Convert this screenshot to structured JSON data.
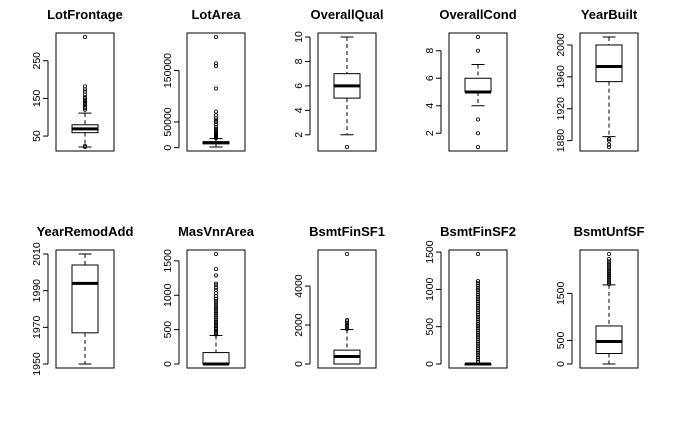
{
  "chart_data": [
    {
      "type": "boxplot",
      "title": "LotFrontage",
      "ylim": [
        21,
        313
      ],
      "ticks": [
        50,
        150,
        250
      ],
      "whisker_low": 21,
      "q1": 59,
      "median": 69,
      "q3": 80,
      "whisker_high": 111,
      "outliers": [
        120,
        124,
        128,
        134,
        138,
        141,
        144,
        150,
        153,
        160,
        168,
        174,
        182,
        313,
        21,
        24
      ]
    },
    {
      "type": "boxplot",
      "title": "LotArea",
      "ylim": [
        1300,
        215245
      ],
      "ticks": [
        0,
        50000,
        150000
      ],
      "whisker_low": 1300,
      "q1": 7554,
      "median": 9478,
      "q3": 11602,
      "whisker_high": 17671,
      "outliers": [
        18500,
        19000,
        20000,
        21000,
        22000,
        23000,
        25000,
        26000,
        28000,
        30000,
        32000,
        34000,
        36000,
        40000,
        45000,
        50000,
        53000,
        57000,
        63000,
        70000,
        115000,
        159000,
        164000,
        215245
      ]
    },
    {
      "type": "boxplot",
      "title": "OverallQual",
      "ylim": [
        1,
        10
      ],
      "ticks": [
        2,
        4,
        6,
        8,
        10
      ],
      "whisker_low": 2,
      "q1": 5,
      "median": 6,
      "q3": 7,
      "whisker_high": 10,
      "outliers": [
        1
      ]
    },
    {
      "type": "boxplot",
      "title": "OverallCond",
      "ylim": [
        1,
        9
      ],
      "ticks": [
        2,
        4,
        6,
        8
      ],
      "whisker_low": 4,
      "q1": 5,
      "median": 5,
      "q3": 6,
      "whisker_high": 7,
      "outliers": [
        1,
        2,
        3,
        8,
        9
      ]
    },
    {
      "type": "boxplot",
      "title": "YearBuilt",
      "ylim": [
        1872,
        2010
      ],
      "ticks": [
        1880,
        1920,
        1960,
        2000
      ],
      "whisker_low": 1885,
      "q1": 1954,
      "median": 1973,
      "q3": 2000,
      "whisker_high": 2010,
      "outliers": [
        1872,
        1875,
        1880,
        1882
      ]
    },
    {
      "type": "boxplot",
      "title": "YearRemodAdd",
      "ylim": [
        1950,
        2010
      ],
      "ticks": [
        1950,
        1970,
        1990,
        2010
      ],
      "whisker_low": 1950,
      "q1": 1967,
      "median": 1994,
      "q3": 2004,
      "whisker_high": 2010,
      "outliers": []
    },
    {
      "type": "boxplot",
      "title": "MasVnrArea",
      "ylim": [
        0,
        1600
      ],
      "ticks": [
        0,
        500,
        1000,
        1500
      ],
      "whisker_low": 0,
      "q1": 0,
      "median": 0,
      "q3": 166,
      "whisker_high": 415,
      "outliers": [
        430,
        450,
        470,
        490,
        510,
        530,
        550,
        570,
        590,
        610,
        630,
        650,
        680,
        710,
        740,
        770,
        800,
        830,
        860,
        890,
        920,
        950,
        990,
        1030,
        1080,
        1110,
        1150,
        1170,
        1290,
        1380,
        1600
      ]
    },
    {
      "type": "boxplot",
      "title": "BsmtFinSF1",
      "ylim": [
        0,
        5644
      ],
      "ticks": [
        0,
        2000,
        4000
      ],
      "whisker_low": 0,
      "q1": 0,
      "median": 384,
      "q3": 712,
      "whisker_high": 1767,
      "outliers": [
        1800,
        1900,
        2000,
        2100,
        2190,
        2260,
        5644
      ]
    },
    {
      "type": "boxplot",
      "title": "BsmtFinSF2",
      "ylim": [
        0,
        1474
      ],
      "ticks": [
        0,
        500,
        1000,
        1500
      ],
      "whisker_low": 0,
      "q1": 0,
      "median": 0,
      "q3": 0,
      "whisker_high": 0,
      "outliers": [
        30,
        60,
        90,
        120,
        150,
        180,
        210,
        240,
        270,
        300,
        330,
        360,
        390,
        420,
        450,
        480,
        510,
        540,
        570,
        600,
        630,
        660,
        690,
        720,
        750,
        780,
        810,
        840,
        870,
        900,
        930,
        960,
        990,
        1020,
        1050,
        1080,
        1110,
        1474
      ]
    },
    {
      "type": "boxplot",
      "title": "BsmtUnfSF",
      "ylim": [
        0,
        2336
      ],
      "ticks": [
        0,
        500,
        1500
      ],
      "whisker_low": 0,
      "q1": 223,
      "median": 478,
      "q3": 808,
      "whisker_high": 1680,
      "outliers": [
        1700,
        1740,
        1780,
        1820,
        1860,
        1900,
        1940,
        1980,
        2020,
        2060,
        2100,
        2140,
        2180,
        2230,
        2336
      ]
    }
  ]
}
